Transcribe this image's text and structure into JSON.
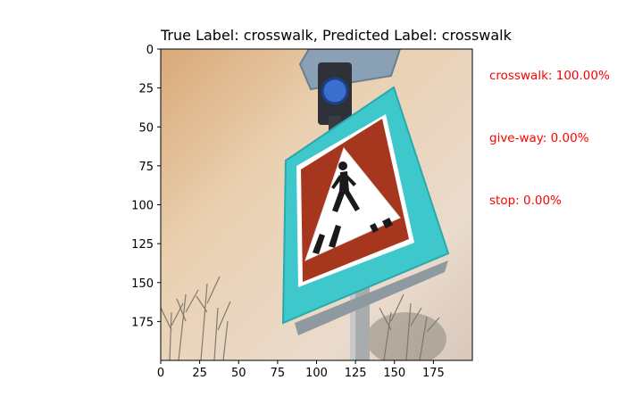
{
  "chart_data": {
    "type": "image",
    "title": "True Label: crosswalk, Predicted Label: crosswalk",
    "xlim": [
      0,
      200
    ],
    "ylim": [
      200,
      0
    ],
    "xticks": [
      0,
      25,
      50,
      75,
      100,
      125,
      150,
      175
    ],
    "yticks": [
      0,
      25,
      50,
      75,
      100,
      125,
      150,
      175
    ],
    "image_content": "crosswalk-sign-photo",
    "predictions": [
      {
        "label": "crosswalk: 100.00%"
      },
      {
        "label": "give-way: 0.00%"
      },
      {
        "label": "stop: 0.00%"
      }
    ],
    "colors": {
      "prediction_text": "#ff0000",
      "sign_frame": "#3ec8cc",
      "sign_triangle_border": "#a7361f",
      "sky": "#e8c9a8"
    }
  }
}
